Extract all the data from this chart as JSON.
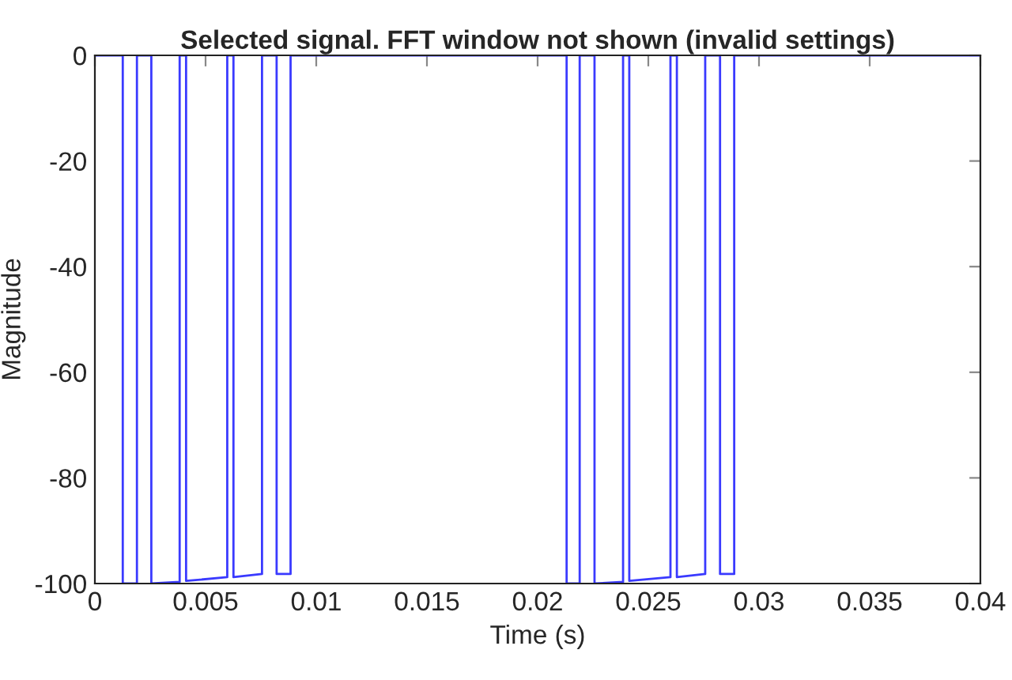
{
  "chart_data": {
    "type": "line",
    "title": "Selected signal. FFT window not shown (invalid settings)",
    "xlabel": "Time (s)",
    "ylabel": "Magnitude",
    "series": [
      {
        "color": "#3a3aff",
        "x": [
          0,
          0.00126,
          0.00126,
          0.0019,
          0.0019,
          0.00255,
          0.00255,
          0.00383,
          0.00383,
          0.00412,
          0.00412,
          0.00598,
          0.00598,
          0.00626,
          0.00626,
          0.00755,
          0.00755,
          0.00821,
          0.00821,
          0.00884,
          0.00884,
          0.02131,
          0.02131,
          0.0219,
          0.0219,
          0.02257,
          0.02257,
          0.02386,
          0.02386,
          0.02414,
          0.02414,
          0.026,
          0.026,
          0.02629,
          0.02629,
          0.02757,
          0.02757,
          0.02824,
          0.02824,
          0.02888,
          0.02888,
          0.04
        ],
        "values": [
          0,
          0,
          -100,
          -100,
          0,
          0,
          -100,
          -99.7,
          0,
          0,
          -99.5,
          -98.8,
          0,
          0,
          -98.8,
          -98.2,
          0,
          0,
          -98.2,
          -98.2,
          0,
          0,
          -100,
          -100,
          0,
          0,
          -100,
          -99.7,
          0,
          0,
          -99.5,
          -98.8,
          0,
          0,
          -98.8,
          -98.2,
          0,
          0,
          -98.2,
          -98.2,
          0,
          0
        ]
      }
    ],
    "xlim": [
      0,
      0.04
    ],
    "ylim": [
      -100,
      0
    ],
    "xticks": [
      0,
      0.005,
      0.01,
      0.015,
      0.02,
      0.025,
      0.03,
      0.035,
      0.04
    ],
    "yticks": [
      -100,
      -80,
      -60,
      -40,
      -20,
      0
    ],
    "grid": false,
    "marker": "none",
    "line_style": "solid"
  }
}
